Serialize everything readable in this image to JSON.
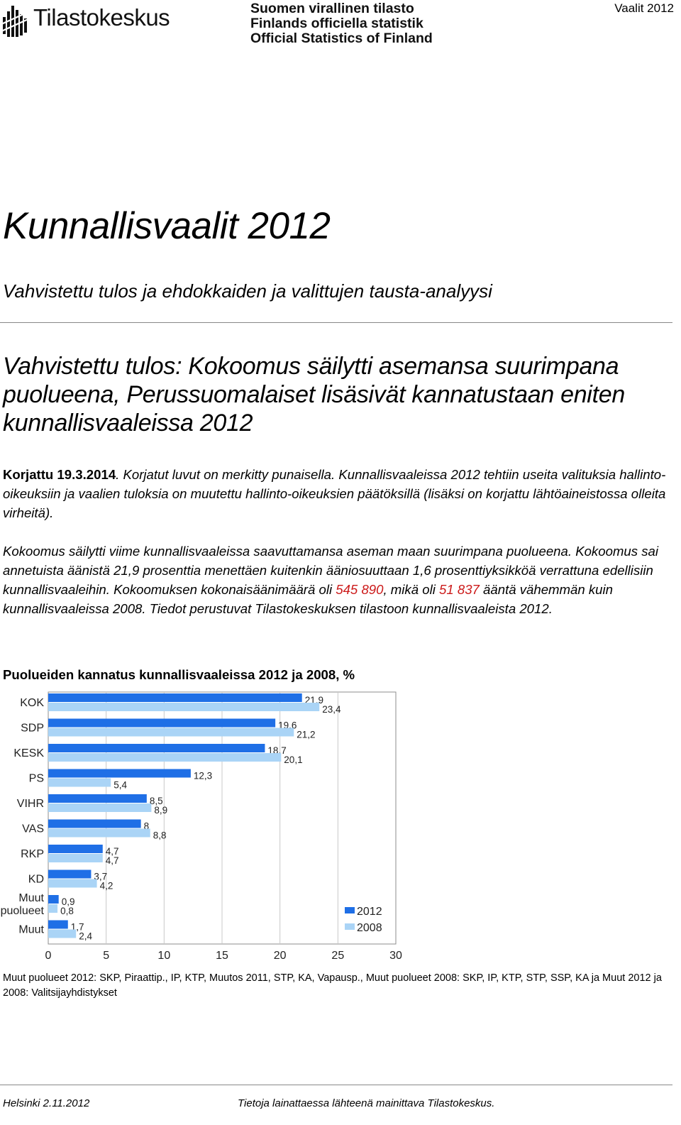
{
  "header": {
    "logo_text": "Tilastokeskus",
    "official_lines": [
      "Suomen virallinen tilasto",
      "Finlands officiella statistik",
      "Official Statistics of Finland"
    ],
    "top_right": "Vaalit 2012"
  },
  "title": "Kunnallisvaalit 2012",
  "subtitle": "Vahvistettu tulos ja ehdokkaiden ja valittujen tausta-analyysi",
  "headline": "Vahvistettu tulos: Kokoomus säilytti asemansa suurimpana puolueena, Perussuomalaiset lisäsivät kannatustaan eniten kunnallisvaaleissa 2012",
  "para1": {
    "bold": "Korjattu 19.3.2014",
    "rest": ". Korjatut luvut on merkitty punaisella. Kunnallisvaaleissa 2012 tehtiin useita valituksia hallinto-oikeuksiin ja vaalien tuloksia on muutettu hallinto-oikeuksien päätöksillä (lisäksi on korjattu lähtöaineistossa olleita virheitä)."
  },
  "para2": {
    "t1": "Kokoomus säilytti viime kunnallisvaaleissa saavuttamansa aseman maan suurimpana puolueena. Kokoomus sai annetuista äänistä 21,9 prosenttia menettäen kuitenkin ääniosuuttaan 1,6 prosenttiyksikköä verrattuna edellisiin kunnallisvaaleihin. Kokoomuksen kokonaisäänimäärä oli ",
    "red1": "545 890",
    "t2": ", mikä oli ",
    "red2": "51 837",
    "t3": " ääntä vähemmän kuin kunnallisvaaleissa 2008. Tiedot perustuvat Tilastokeskuksen tilastoon kunnallisvaaleista 2012."
  },
  "chart_data": {
    "type": "bar",
    "orientation": "horizontal",
    "title": "Puolueiden kannatus kunnallisvaaleissa 2012 ja 2008, %",
    "categories": [
      "KOK",
      "SDP",
      "KESK",
      "PS",
      "VIHR",
      "VAS",
      "RKP",
      "KD",
      "Muut puolueet",
      "Muut"
    ],
    "category_lines": [
      [
        "KOK"
      ],
      [
        "SDP"
      ],
      [
        "KESK"
      ],
      [
        "PS"
      ],
      [
        "VIHR"
      ],
      [
        "VAS"
      ],
      [
        "RKP"
      ],
      [
        "KD"
      ],
      [
        "Muut",
        "puolueet"
      ],
      [
        "Muut"
      ]
    ],
    "series": [
      {
        "name": "2012",
        "values": [
          21.9,
          19.6,
          18.7,
          12.3,
          8.5,
          8,
          4.7,
          3.7,
          0.9,
          1.7
        ],
        "labels": [
          "21,9",
          "19,6",
          "18,7",
          "12,3",
          "8,5",
          "8",
          "4,7",
          "3,7",
          "0,9",
          "1,7"
        ],
        "color": "#1f6fe6"
      },
      {
        "name": "2008",
        "values": [
          23.4,
          21.2,
          20.1,
          5.4,
          8.9,
          8.8,
          4.7,
          4.2,
          0.8,
          2.4
        ],
        "labels": [
          "23,4",
          "21,2",
          "20,1",
          "5,4",
          "8,9",
          "8,8",
          "4,7",
          "4,2",
          "0,8",
          "2,4"
        ],
        "color": "#aad4f6"
      }
    ],
    "xlim": [
      0,
      30
    ],
    "xticks": [
      0,
      5,
      10,
      15,
      20,
      25,
      30
    ],
    "grid": true,
    "legend": "bottom-right"
  },
  "chart_note": "Muut puolueet 2012: SKP, Piraattip., IP, KTP, Muutos 2011, STP, KA, Vapausp., Muut puolueet 2008: SKP, IP, KTP, STP, SSP, KA ja Muut 2012 ja 2008: Valitsijayhdistykset",
  "footer": {
    "left": "Helsinki 2.11.2012",
    "right": "Tietoja lainattaessa lähteenä mainittava Tilastokeskus."
  }
}
